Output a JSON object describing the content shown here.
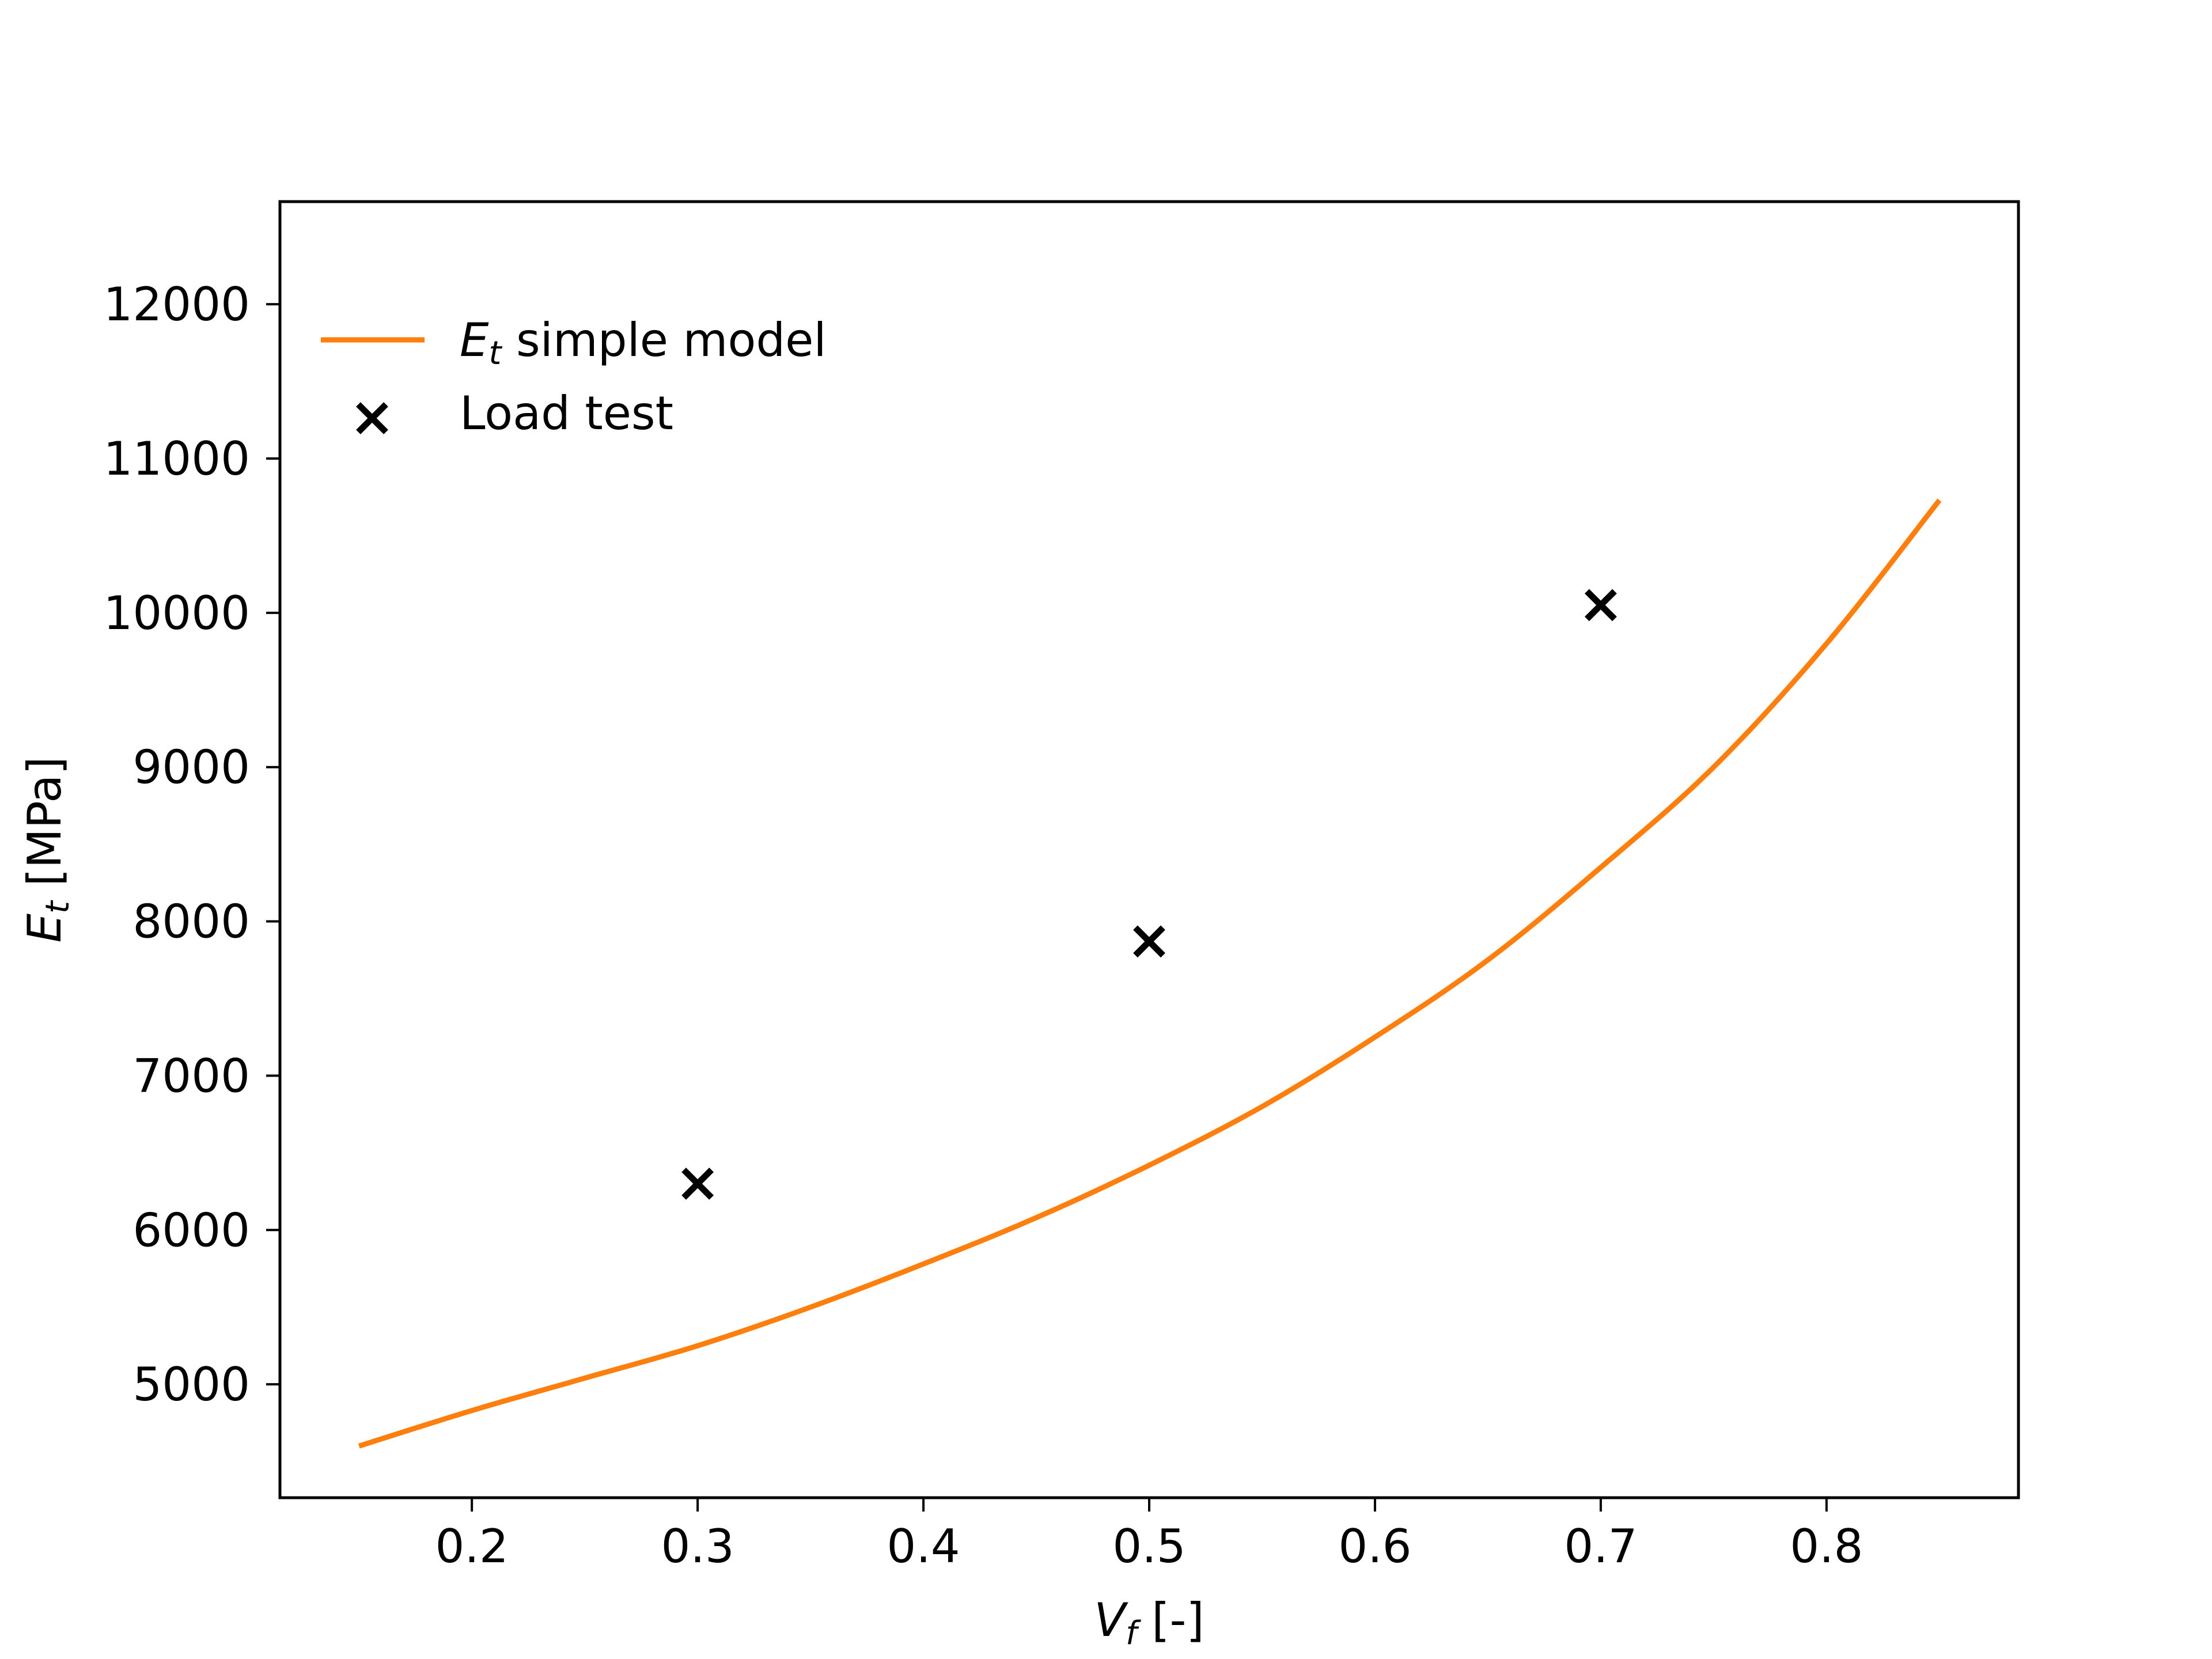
{
  "chart_data": {
    "type": "line",
    "xlabel": "V_f [-]",
    "xlabel_main": "V",
    "xlabel_sub": "f",
    "xlabel_unit": " [-]",
    "ylabel": "E_t [MPa]",
    "ylabel_main": "E",
    "ylabel_sub": "t",
    "ylabel_unit": " [MPa]",
    "xlim": [
      0.115,
      0.885
    ],
    "ylim": [
      4265,
      12665
    ],
    "xticks": [
      0.2,
      0.3,
      0.4,
      0.5,
      0.6,
      0.7,
      0.8
    ],
    "xtick_labels": [
      "0.2",
      "0.3",
      "0.4",
      "0.5",
      "0.6",
      "0.7",
      "0.8"
    ],
    "yticks": [
      5000,
      6000,
      7000,
      8000,
      9000,
      10000,
      11000,
      12000
    ],
    "ytick_labels": [
      "5000",
      "6000",
      "7000",
      "8000",
      "9000",
      "10000",
      "11000",
      "12000"
    ],
    "grid": false,
    "legend_placement": "upper-left",
    "series": [
      {
        "name": "E_t simple model",
        "legend_main": "E",
        "legend_sub": "t",
        "legend_rest": " simple model",
        "kind": "line",
        "color": "#ff7f0e",
        "x": [
          0.15,
          0.2,
          0.25,
          0.3,
          0.35,
          0.4,
          0.45,
          0.5,
          0.55,
          0.6,
          0.65,
          0.7,
          0.75,
          0.8,
          0.85
        ],
        "y": [
          4600,
          4830,
          5040,
          5250,
          5500,
          5780,
          6080,
          6420,
          6800,
          7250,
          7750,
          8350,
          9000,
          9800,
          10730
        ]
      },
      {
        "name": "Load test",
        "kind": "scatter",
        "marker": "x",
        "color": "#000000",
        "x": [
          0.3,
          0.5,
          0.7
        ],
        "y": [
          6300,
          7870,
          10050
        ]
      }
    ]
  }
}
